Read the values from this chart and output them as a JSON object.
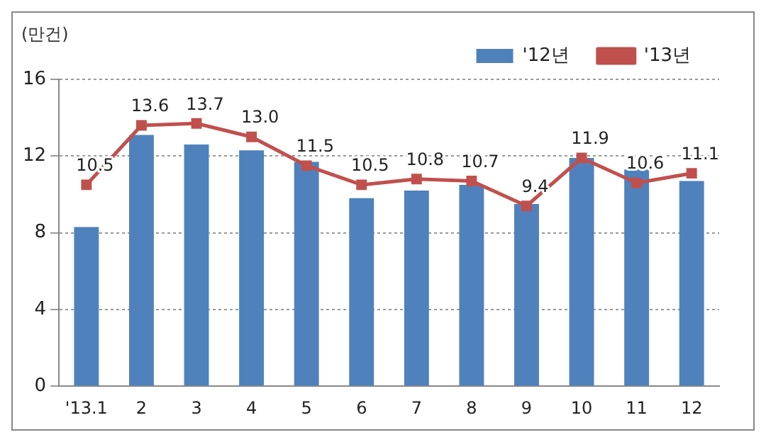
{
  "chart_data": {
    "type": "bar",
    "ylabel": "(만건)",
    "categories": [
      "'13.1",
      "2",
      "3",
      "4",
      "5",
      "6",
      "7",
      "8",
      "9",
      "10",
      "11",
      "12"
    ],
    "series": [
      {
        "name": "'12년",
        "color": "#4f81bd",
        "values": [
          8.3,
          13.1,
          12.6,
          12.3,
          11.7,
          9.8,
          10.2,
          10.5,
          9.5,
          11.9,
          11.3,
          10.7
        ]
      },
      {
        "name": "'13년",
        "type": "line",
        "color": "#c0504d",
        "values": [
          10.5,
          13.6,
          13.7,
          13.0,
          11.5,
          10.5,
          10.8,
          10.7,
          9.4,
          11.9,
          10.6,
          11.1
        ],
        "value_labels": [
          "10.5",
          "13.6",
          "13.7",
          "13.0",
          "11.5",
          "10.5",
          "10.8",
          "10.7",
          "9.4",
          "11.9",
          "10.6",
          "11.1"
        ]
      }
    ],
    "ylim": [
      0,
      16
    ],
    "yticks": [
      0,
      4,
      8,
      12,
      16
    ],
    "grid": "y",
    "legend": "top right",
    "marker": "square",
    "line_style": "solid"
  }
}
